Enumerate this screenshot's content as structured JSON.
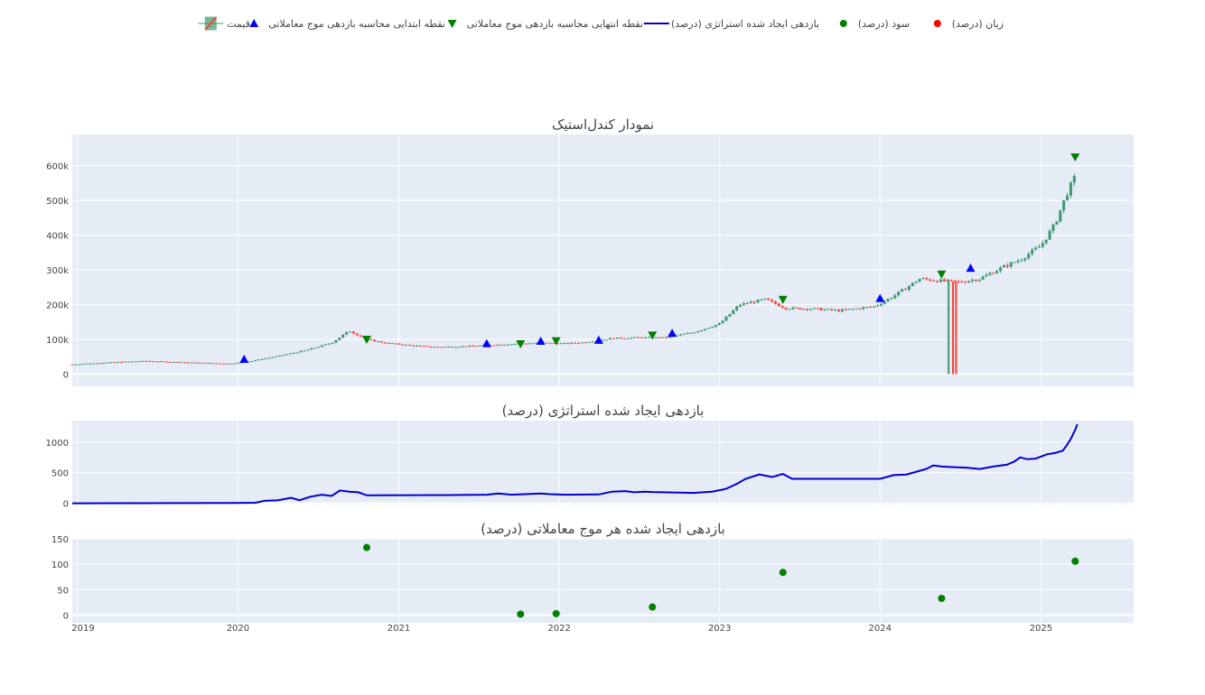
{
  "colors": {
    "plot_bg": "#e5ecf6",
    "grid": "#ffffff",
    "increasing": "#3d9970",
    "decreasing": "#ff4136",
    "strategy_line": "#0000cc",
    "entry": "#0000ff",
    "exit": "#008000",
    "profit": "#008000",
    "loss": "#ff0000",
    "text": "#444444"
  },
  "legend": {
    "position": "top-center",
    "items": [
      {
        "label": "زیان (درصد)",
        "icon": "circle-marker-icon",
        "color": "#ff0000"
      },
      {
        "label": "سود (درصد)",
        "icon": "circle-marker-icon",
        "color": "#008000"
      },
      {
        "label": "بازدهی ایجاد شده استراتژی (درصد)",
        "icon": "line-icon",
        "color": "#0000cc"
      },
      {
        "label": "نقطه انتهایی محاسبه بازدهی موج معاملاتی",
        "icon": "triangle-down-icon",
        "color": "#008000"
      },
      {
        "label": "نقطه ابتدایی محاسبه بازدهی موج معاملاتی",
        "icon": "triangle-up-icon",
        "color": "#0000ff"
      },
      {
        "label": "قیمت",
        "icon": "candlestick-icon",
        "color": "#3d9970"
      }
    ]
  },
  "chart_data": [
    {
      "type": "candlestick",
      "title": "نمودار کندل‌استیک",
      "x_range": [
        "2018-12-20",
        "2025-07-31"
      ],
      "x_ticks": [
        "2019",
        "2020",
        "2021",
        "2022",
        "2023",
        "2024",
        "2025"
      ],
      "y_range": [
        -35000,
        690000
      ],
      "y_ticks": [
        0,
        100000,
        200000,
        300000,
        400000,
        500000,
        600000
      ],
      "y_tick_labels": [
        "0",
        "100k",
        "200k",
        "300k",
        "400k",
        "500k",
        "600k"
      ],
      "price_series": {
        "name": "قیمت",
        "dates": [
          "2018-12-20",
          "2019-03-01",
          "2019-06-01",
          "2019-09-01",
          "2019-12-15",
          "2020-02-01",
          "2020-04-01",
          "2020-06-01",
          "2020-08-01",
          "2020-09-10",
          "2020-10-20",
          "2020-12-01",
          "2021-02-01",
          "2021-04-01",
          "2021-06-01",
          "2021-08-01",
          "2021-10-01",
          "2021-12-01",
          "2022-01-15",
          "2022-03-01",
          "2022-05-01",
          "2022-07-01",
          "2022-09-01",
          "2022-11-01",
          "2023-01-01",
          "2023-02-15",
          "2023-04-15",
          "2023-06-01",
          "2023-08-01",
          "2023-10-01",
          "2023-12-20",
          "2024-02-01",
          "2024-04-01",
          "2024-05-20",
          "2024-07-01",
          "2024-08-15",
          "2024-10-01",
          "2024-11-15",
          "2025-01-01",
          "2025-02-01",
          "2025-03-01",
          "2025-03-25"
        ],
        "close": [
          28000,
          33000,
          38000,
          34000,
          30000,
          38000,
          52000,
          68000,
          90000,
          125000,
          100000,
          90000,
          82000,
          78000,
          80000,
          84000,
          88000,
          90000,
          88000,
          92000,
          103000,
          105000,
          105000,
          120000,
          145000,
          200000,
          215000,
          190000,
          188000,
          183000,
          195000,
          225000,
          275000,
          268000,
          265000,
          275000,
          305000,
          330000,
          370000,
          430000,
          520000,
          580000
        ],
        "extreme_lows": [
          {
            "date": "2024-06-05",
            "low": 0
          },
          {
            "date": "2024-06-15",
            "low": 0
          },
          {
            "date": "2024-06-22",
            "low": 0
          }
        ]
      },
      "entry_points": {
        "name": "نقطه ابتدایی محاسبه بازدهی موج معاملاتی",
        "dates": [
          "2020-01-15",
          "2021-07-20",
          "2021-11-20",
          "2022-04-01",
          "2022-09-15",
          "2024-01-01",
          "2024-07-25"
        ],
        "values": [
          43000,
          88000,
          95000,
          98000,
          118000,
          218000,
          305000
        ]
      },
      "exit_points": {
        "name": "نقطه انتهایی محاسبه بازدهی موج معاملاتی",
        "dates": [
          "2020-10-20",
          "2021-10-05",
          "2021-12-25",
          "2022-08-01",
          "2023-05-25",
          "2024-05-20",
          "2025-03-20"
        ],
        "values": [
          100000,
          87000,
          96000,
          112000,
          215000,
          288000,
          625000
        ]
      }
    },
    {
      "type": "line",
      "title": "بازدهی ایجاد شده استراتژی (درصد)",
      "y_range": [
        -20,
        1350
      ],
      "y_ticks": [
        0,
        500,
        1000
      ],
      "series": [
        {
          "name": "بازدهی ایجاد شده استراتژی (درصد)",
          "x": [
            "2018-12-20",
            "2019-12-15",
            "2020-02-10",
            "2020-03-01",
            "2020-04-01",
            "2020-05-01",
            "2020-05-20",
            "2020-06-15",
            "2020-07-10",
            "2020-08-01",
            "2020-08-20",
            "2020-09-10",
            "2020-10-01",
            "2020-10-20",
            "2020-11-01",
            "2021-05-01",
            "2021-07-20",
            "2021-08-15",
            "2021-09-15",
            "2021-10-15",
            "2021-11-20",
            "2021-12-10",
            "2022-01-15",
            "2022-04-01",
            "2022-05-01",
            "2022-06-01",
            "2022-06-20",
            "2022-07-15",
            "2022-08-01",
            "2022-11-01",
            "2022-12-15",
            "2023-01-15",
            "2023-02-10",
            "2023-03-01",
            "2023-04-01",
            "2023-05-01",
            "2023-05-25",
            "2023-06-15",
            "2023-08-01",
            "2023-12-01",
            "2024-01-01",
            "2024-02-01",
            "2024-03-01",
            "2024-04-15",
            "2024-05-01",
            "2024-05-20",
            "2024-06-20",
            "2024-07-20",
            "2024-07-25",
            "2024-08-15",
            "2024-09-15",
            "2024-10-15",
            "2024-11-01",
            "2024-11-15",
            "2024-12-01",
            "2024-12-20",
            "2025-01-15",
            "2025-02-01",
            "2025-02-20",
            "2025-03-01",
            "2025-03-10",
            "2025-03-20",
            "2025-03-25"
          ],
          "y": [
            0,
            5,
            10,
            40,
            50,
            90,
            50,
            110,
            140,
            120,
            210,
            190,
            180,
            130,
            130,
            135,
            140,
            160,
            140,
            150,
            160,
            150,
            140,
            145,
            190,
            200,
            180,
            190,
            185,
            170,
            190,
            235,
            320,
            400,
            470,
            430,
            480,
            400,
            400,
            400,
            400,
            460,
            470,
            560,
            620,
            600,
            590,
            580,
            575,
            560,
            600,
            630,
            680,
            750,
            720,
            730,
            800,
            820,
            860,
            950,
            1050,
            1200,
            1290
          ]
        }
      ]
    },
    {
      "type": "scatter",
      "title": "بازدهی ایجاد شده هر موج معاملاتی (درصد)",
      "y_range": [
        -15,
        150
      ],
      "y_ticks": [
        0,
        50,
        100,
        150
      ],
      "series": [
        {
          "name": "سود (درصد)",
          "x": [
            "2020-10-20",
            "2021-10-05",
            "2021-12-25",
            "2022-08-01",
            "2023-05-25",
            "2024-05-20",
            "2025-03-20"
          ],
          "y": [
            133,
            2,
            3,
            16,
            84,
            33,
            106
          ]
        },
        {
          "name": "زیان (درصد)",
          "x": [],
          "y": []
        }
      ]
    }
  ]
}
